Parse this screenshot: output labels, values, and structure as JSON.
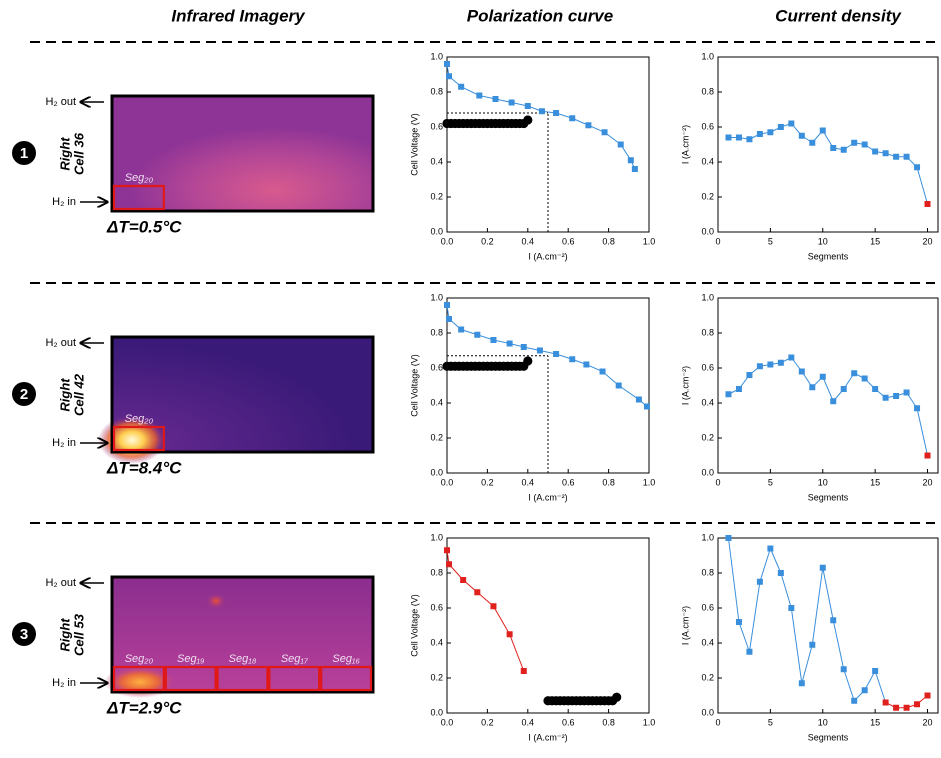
{
  "headers": [
    "Infrared Imagery",
    "Polarization curve",
    "Current density"
  ],
  "rows": [
    {
      "badge": "1",
      "ir": {
        "h2_out": "H₂ out",
        "h2_in": "H₂ in",
        "side": "Right",
        "cell": "Cell 36",
        "segments": [
          "Seg₂₀"
        ],
        "delta_t": "ΔT=0.5°C"
      }
    },
    {
      "badge": "2",
      "ir": {
        "h2_out": "H₂ out",
        "h2_in": "H₂ in",
        "side": "Right",
        "cell": "Cell 42",
        "segments": [
          "Seg₂₀"
        ],
        "delta_t": "ΔT=8.4°C"
      }
    },
    {
      "badge": "3",
      "ir": {
        "h2_out": "H₂ out",
        "h2_in": "H₂ in",
        "side": "Right",
        "cell": "Cell 53",
        "segments": [
          "Seg₂₀",
          "Seg₁₉",
          "Seg₁₈",
          "Seg₁₇",
          "Seg₁₆"
        ],
        "delta_t": "ΔT=2.9°C"
      }
    }
  ],
  "chart_data": [
    {
      "type": "line",
      "x_label": "I (A.cm⁻²)",
      "y_label": "Cell Voltage (V)",
      "xlim": [
        0,
        1
      ],
      "ylim": [
        0,
        1
      ],
      "xticks": [
        {
          "value": 0,
          "label": "0.0"
        },
        0.2,
        0.4,
        0.6,
        0.8,
        {
          "value": 1,
          "label": "1.0"
        }
      ],
      "yticks": [
        {
          "value": 0,
          "label": "0.0"
        },
        0.2,
        0.4,
        0.6,
        0.8,
        {
          "value": 1,
          "label": "1.0"
        }
      ],
      "ref_x": 0.5,
      "ref_y": 0.68,
      "series": [
        {
          "color": "#3a8fdc",
          "marker": "square",
          "line": true,
          "x": [
            0,
            0.01,
            0.07,
            0.16,
            0.24,
            0.32,
            0.4,
            0.47,
            0.54,
            0.62,
            0.7,
            0.78,
            0.86,
            0.91,
            0.93
          ],
          "values": [
            0.96,
            0.89,
            0.83,
            0.78,
            0.76,
            0.74,
            0.72,
            0.69,
            0.68,
            0.65,
            0.61,
            0.57,
            0.5,
            0.41,
            0.36
          ]
        },
        {
          "color": "#000000",
          "marker": "circle",
          "line": false,
          "x": [
            0,
            0.02,
            0.04,
            0.06,
            0.08,
            0.1,
            0.12,
            0.14,
            0.16,
            0.18,
            0.2,
            0.22,
            0.24,
            0.26,
            0.28,
            0.3,
            0.32,
            0.34,
            0.36,
            0.38,
            0.4
          ],
          "values": [
            0.62,
            0.62,
            0.62,
            0.62,
            0.62,
            0.62,
            0.62,
            0.62,
            0.62,
            0.62,
            0.62,
            0.62,
            0.62,
            0.62,
            0.62,
            0.62,
            0.62,
            0.62,
            0.62,
            0.62,
            0.64
          ]
        }
      ]
    },
    {
      "type": "line",
      "x_label": "Segments",
      "y_label": "I (A.cm⁻²)",
      "xlim": [
        0,
        21
      ],
      "ylim": [
        0,
        1
      ],
      "xticks": [
        0,
        5,
        10,
        15,
        20
      ],
      "yticks": [
        {
          "value": 0,
          "label": "0.0"
        },
        0.2,
        0.4,
        0.6,
        0.8,
        {
          "value": 1,
          "label": "1.0"
        }
      ],
      "series": [
        {
          "color": "#3a8fdc",
          "marker": "square",
          "line": true,
          "x": [
            1,
            2,
            3,
            4,
            5,
            6,
            7,
            8,
            9,
            10,
            11,
            12,
            13,
            14,
            15,
            16,
            17,
            18,
            19,
            20
          ],
          "values": [
            0.54,
            0.54,
            0.53,
            0.56,
            0.57,
            0.6,
            0.62,
            0.55,
            0.51,
            0.58,
            0.48,
            0.47,
            0.51,
            0.5,
            0.46,
            0.45,
            0.43,
            0.43,
            0.37,
            0.16
          ],
          "point_colors": [
            "#3a8fdc",
            "#3a8fdc",
            "#3a8fdc",
            "#3a8fdc",
            "#3a8fdc",
            "#3a8fdc",
            "#3a8fdc",
            "#3a8fdc",
            "#3a8fdc",
            "#3a8fdc",
            "#3a8fdc",
            "#3a8fdc",
            "#3a8fdc",
            "#3a8fdc",
            "#3a8fdc",
            "#3a8fdc",
            "#3a8fdc",
            "#3a8fdc",
            "#3a8fdc",
            "#e0201c"
          ]
        }
      ]
    },
    {
      "type": "line",
      "x_label": "I (A.cm⁻²)",
      "y_label": "Cell Voltage (V)",
      "xlim": [
        0,
        1
      ],
      "ylim": [
        0,
        1
      ],
      "xticks": [
        {
          "value": 0,
          "label": "0.0"
        },
        0.2,
        0.4,
        0.6,
        0.8,
        {
          "value": 1,
          "label": "1.0"
        }
      ],
      "yticks": [
        {
          "value": 0,
          "label": "0.0"
        },
        0.2,
        0.4,
        0.6,
        0.8,
        {
          "value": 1,
          "label": "1.0"
        }
      ],
      "ref_x": 0.5,
      "ref_y": 0.67,
      "series": [
        {
          "color": "#3a8fdc",
          "marker": "square",
          "line": true,
          "x": [
            0,
            0.01,
            0.07,
            0.15,
            0.23,
            0.31,
            0.38,
            0.46,
            0.54,
            0.62,
            0.69,
            0.77,
            0.85,
            0.95,
            0.99
          ],
          "values": [
            0.96,
            0.88,
            0.82,
            0.79,
            0.76,
            0.74,
            0.72,
            0.7,
            0.68,
            0.65,
            0.62,
            0.58,
            0.5,
            0.42,
            0.38
          ]
        },
        {
          "color": "#000000",
          "marker": "circle",
          "line": false,
          "x": [
            0,
            0.02,
            0.04,
            0.06,
            0.08,
            0.1,
            0.12,
            0.14,
            0.16,
            0.18,
            0.2,
            0.22,
            0.24,
            0.26,
            0.28,
            0.3,
            0.32,
            0.34,
            0.36,
            0.38,
            0.4
          ],
          "values": [
            0.61,
            0.61,
            0.61,
            0.61,
            0.61,
            0.61,
            0.61,
            0.61,
            0.61,
            0.61,
            0.61,
            0.61,
            0.61,
            0.61,
            0.61,
            0.61,
            0.61,
            0.61,
            0.61,
            0.61,
            0.64
          ]
        }
      ]
    },
    {
      "type": "line",
      "x_label": "Segments",
      "y_label": "I (A.cm⁻²)",
      "xlim": [
        0,
        21
      ],
      "ylim": [
        0,
        1
      ],
      "xticks": [
        0,
        5,
        10,
        15,
        20
      ],
      "yticks": [
        {
          "value": 0,
          "label": "0.0"
        },
        0.2,
        0.4,
        0.6,
        0.8,
        {
          "value": 1,
          "label": "1.0"
        }
      ],
      "series": [
        {
          "color": "#3a8fdc",
          "marker": "square",
          "line": true,
          "x": [
            1,
            2,
            3,
            4,
            5,
            6,
            7,
            8,
            9,
            10,
            11,
            12,
            13,
            14,
            15,
            16,
            17,
            18,
            19,
            20
          ],
          "values": [
            0.45,
            0.48,
            0.56,
            0.61,
            0.62,
            0.63,
            0.66,
            0.58,
            0.49,
            0.55,
            0.41,
            0.48,
            0.57,
            0.54,
            0.48,
            0.43,
            0.44,
            0.46,
            0.37,
            0.1
          ],
          "point_colors": [
            "#3a8fdc",
            "#3a8fdc",
            "#3a8fdc",
            "#3a8fdc",
            "#3a8fdc",
            "#3a8fdc",
            "#3a8fdc",
            "#3a8fdc",
            "#3a8fdc",
            "#3a8fdc",
            "#3a8fdc",
            "#3a8fdc",
            "#3a8fdc",
            "#3a8fdc",
            "#3a8fdc",
            "#3a8fdc",
            "#3a8fdc",
            "#3a8fdc",
            "#3a8fdc",
            "#e0201c"
          ]
        }
      ]
    },
    {
      "type": "line",
      "x_label": "I (A.cm⁻²)",
      "y_label": "Cell Voltage (V)",
      "xlim": [
        0,
        1
      ],
      "ylim": [
        0,
        1
      ],
      "xticks": [
        {
          "value": 0,
          "label": "0.0"
        },
        0.2,
        0.4,
        0.6,
        0.8,
        {
          "value": 1,
          "label": "1.0"
        }
      ],
      "yticks": [
        {
          "value": 0,
          "label": "0.0"
        },
        0.2,
        0.4,
        0.6,
        0.8,
        {
          "value": 1,
          "label": "1.0"
        }
      ],
      "series": [
        {
          "color": "#e0201c",
          "marker": "square",
          "line": true,
          "x": [
            0,
            0.01,
            0.08,
            0.15,
            0.23,
            0.31,
            0.38
          ],
          "values": [
            0.93,
            0.85,
            0.76,
            0.69,
            0.61,
            0.45,
            0.24
          ]
        },
        {
          "color": "#000000",
          "marker": "circle",
          "line": false,
          "x": [
            0.5,
            0.52,
            0.54,
            0.56,
            0.58,
            0.6,
            0.62,
            0.64,
            0.66,
            0.68,
            0.7,
            0.72,
            0.74,
            0.76,
            0.78,
            0.8,
            0.82,
            0.84
          ],
          "values": [
            0.07,
            0.07,
            0.07,
            0.07,
            0.07,
            0.07,
            0.07,
            0.07,
            0.07,
            0.07,
            0.07,
            0.07,
            0.07,
            0.07,
            0.07,
            0.07,
            0.07,
            0.09
          ]
        }
      ]
    },
    {
      "type": "line",
      "x_label": "Segments",
      "y_label": "I (A.cm⁻²)",
      "xlim": [
        0,
        21
      ],
      "ylim": [
        0,
        1
      ],
      "xticks": [
        0,
        5,
        10,
        15,
        20
      ],
      "yticks": [
        {
          "value": 0,
          "label": "0.0"
        },
        0.2,
        0.4,
        0.6,
        0.8,
        {
          "value": 1,
          "label": "1.0"
        }
      ],
      "series": [
        {
          "color": "#3a8fdc",
          "marker": "square",
          "line": true,
          "x": [
            1,
            2,
            3,
            4,
            5,
            6,
            7,
            8,
            9,
            10,
            11,
            12,
            13,
            14,
            15,
            16,
            17,
            18,
            19,
            20
          ],
          "values": [
            1.0,
            0.52,
            0.35,
            0.75,
            0.94,
            0.8,
            0.6,
            0.17,
            0.39,
            0.83,
            0.53,
            0.25,
            0.07,
            0.13,
            0.24,
            0.06,
            0.03,
            0.03,
            0.05,
            0.1
          ],
          "point_colors": [
            "#3a8fdc",
            "#3a8fdc",
            "#3a8fdc",
            "#3a8fdc",
            "#3a8fdc",
            "#3a8fdc",
            "#3a8fdc",
            "#3a8fdc",
            "#3a8fdc",
            "#3a8fdc",
            "#3a8fdc",
            "#3a8fdc",
            "#3a8fdc",
            "#3a8fdc",
            "#3a8fdc",
            "#e0201c",
            "#e0201c",
            "#e0201c",
            "#e0201c",
            "#e0201c"
          ]
        }
      ]
    }
  ]
}
